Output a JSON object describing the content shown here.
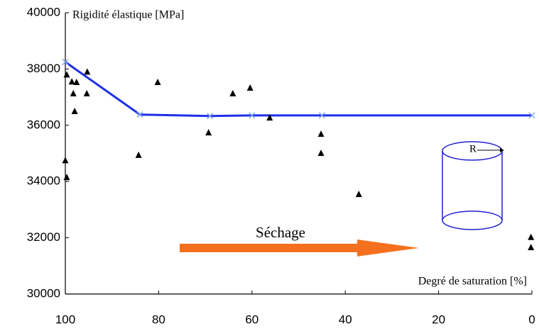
{
  "chart_data": {
    "type": "scatter",
    "y_label": "Rigidité élastique [MPa]",
    "x_label": "Degré de saturation [%]",
    "annotations": [
      "Séchage",
      "R"
    ],
    "xlim": [
      100,
      0
    ],
    "ylim": [
      30000,
      40000
    ],
    "xticks": [
      100,
      80,
      60,
      40,
      20,
      0
    ],
    "yticks": [
      30000,
      32000,
      34000,
      36000,
      38000,
      40000
    ],
    "series": [
      {
        "type": "line",
        "color": "#1f2fe6",
        "marker_color": "#7fa8f0",
        "x": [
          100,
          84,
          69,
          60,
          45,
          0
        ],
        "values": [
          38250,
          36380,
          36330,
          36350,
          36350,
          36350
        ]
      },
      {
        "type": "scatter",
        "color": "#000000",
        "x": [
          100,
          99.7,
          99.7,
          98.6,
          97.6,
          98.3,
          98,
          95.3,
          95.4,
          84.3,
          80.2,
          69.3,
          64.1,
          60.4,
          56.2,
          45.2,
          45.2,
          37.1,
          0.2,
          0.2
        ],
        "values": [
          34750,
          34150,
          37800,
          37550,
          37530,
          37130,
          36500,
          37900,
          37130,
          34940,
          37530,
          35740,
          37130,
          37330,
          36270,
          35690,
          35010,
          33550,
          32020,
          31660
        ]
      }
    ]
  }
}
